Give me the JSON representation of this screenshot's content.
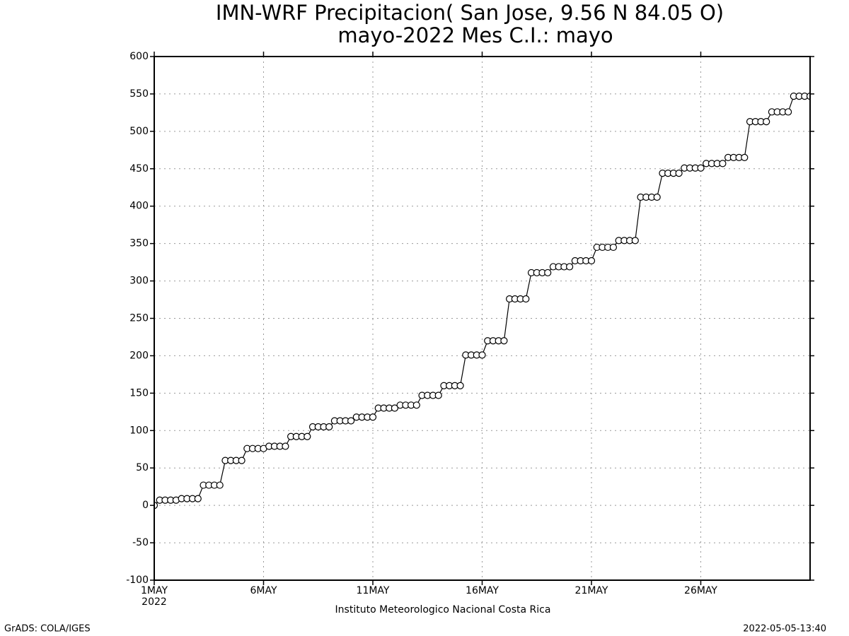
{
  "chart_data": {
    "type": "line",
    "title": "IMN-WRF  Precipitacion( San Jose, 9.56  N 84.05  O)",
    "subtitle": "mayo-2022 Mes C.I.: mayo",
    "x_sublabel": "2022",
    "x_label": "Instituto Meteorologico Nacional Costa Rica",
    "footer_left": "GrADS: COLA/IGES",
    "footer_right": "2022-05-05-13:40",
    "x": [
      1,
      1.25,
      1.5,
      1.75,
      2,
      2.25,
      2.5,
      2.75,
      3,
      3.25,
      3.5,
      3.75,
      4,
      4.25,
      4.5,
      4.75,
      5,
      5.25,
      5.5,
      5.75,
      6,
      6.25,
      6.5,
      6.75,
      7,
      7.25,
      7.5,
      7.75,
      8,
      8.25,
      8.5,
      8.75,
      9,
      9.25,
      9.5,
      9.75,
      10,
      10.25,
      10.5,
      10.75,
      11,
      11.25,
      11.5,
      11.75,
      12,
      12.25,
      12.5,
      12.75,
      13,
      13.25,
      13.5,
      13.75,
      14,
      14.25,
      14.5,
      14.75,
      15,
      15.25,
      15.5,
      15.75,
      16,
      16.25,
      16.5,
      16.75,
      17,
      17.25,
      17.5,
      17.75,
      18,
      18.25,
      18.5,
      18.75,
      19,
      19.25,
      19.5,
      19.75,
      20,
      20.25,
      20.5,
      20.75,
      21,
      21.25,
      21.5,
      21.75,
      22,
      22.25,
      22.5,
      22.75,
      23,
      23.25,
      23.5,
      23.75,
      24,
      24.25,
      24.5,
      24.75,
      25,
      25.25,
      25.5,
      25.75,
      26,
      26.25,
      26.5,
      26.75,
      27,
      27.25,
      27.5,
      27.75,
      28,
      28.25,
      28.5,
      28.75,
      29,
      29.25,
      29.5,
      29.75,
      30,
      30.25,
      30.5,
      30.75,
      31
    ],
    "series": [
      {
        "color": "#000000",
        "values": [
          0,
          7,
          7,
          7,
          7,
          9,
          9,
          9,
          9,
          27,
          27,
          27,
          27,
          60,
          60,
          60,
          60,
          76,
          76,
          76,
          76,
          79,
          79,
          79,
          79,
          92,
          92,
          92,
          92,
          105,
          105,
          105,
          105,
          113,
          113,
          113,
          113,
          118,
          118,
          118,
          118,
          130,
          130,
          130,
          130,
          134,
          134,
          134,
          134,
          147,
          147,
          147,
          147,
          160,
          160,
          160,
          160,
          201,
          201,
          201,
          201,
          220,
          220,
          220,
          220,
          276,
          276,
          276,
          276,
          311,
          311,
          311,
          311,
          319,
          319,
          319,
          319,
          327,
          327,
          327,
          327,
          345,
          345,
          345,
          345,
          354,
          354,
          354,
          354,
          412,
          412,
          412,
          412,
          444,
          444,
          444,
          444,
          451,
          451,
          451,
          451,
          457,
          457,
          457,
          457,
          465,
          465,
          465,
          465,
          513,
          513,
          513,
          513,
          526,
          526,
          526,
          526,
          547,
          547,
          547,
          547
        ]
      }
    ],
    "xlim": [
      1,
      31
    ],
    "xticks": [
      {
        "value": 1,
        "label": "1MAY"
      },
      {
        "value": 6,
        "label": "6MAY"
      },
      {
        "value": 11,
        "label": "11MAY"
      },
      {
        "value": 16,
        "label": "16MAY"
      },
      {
        "value": 21,
        "label": "21MAY"
      },
      {
        "value": 26,
        "label": "26MAY"
      }
    ],
    "ylim": [
      -100,
      600
    ],
    "yticks": [
      -100,
      -50,
      0,
      50,
      100,
      150,
      200,
      250,
      300,
      350,
      400,
      450,
      500,
      550,
      600
    ],
    "grid": true
  }
}
